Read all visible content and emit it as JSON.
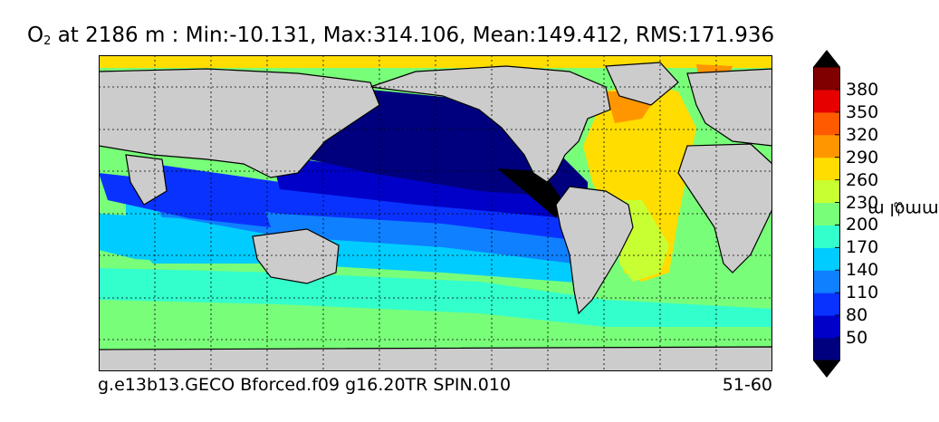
{
  "chart_data": {
    "type": "heatmap",
    "title": {
      "variable": "O",
      "variable_subscript": "2",
      "rest": " at 2186 m : Min:-10.131, Max:314.106, Mean:149.412, RMS:171.936"
    },
    "depth_m": 2186,
    "stats": {
      "min": -10.131,
      "max": 314.106,
      "mean": 149.412,
      "rms": 171.936
    },
    "colorbar": {
      "label": "mmol m",
      "label_exponent": "−3",
      "ticks": [
        50,
        80,
        110,
        140,
        170,
        200,
        230,
        260,
        290,
        320,
        350,
        380
      ],
      "levels": [
        20,
        50,
        80,
        110,
        140,
        170,
        200,
        230,
        260,
        290,
        320,
        350,
        380,
        410
      ],
      "colors": [
        "#00007f",
        "#0000c8",
        "#0a32ff",
        "#0f80ff",
        "#00ccff",
        "#33ffcc",
        "#79fe79",
        "#c8ff33",
        "#ffdd00",
        "#ff9600",
        "#ff5a00",
        "#e60000",
        "#800000"
      ],
      "extend_low_color": "#000000",
      "extend_high_color": "#000000"
    },
    "colors": {
      "land": "#cccccc",
      "missing": "#ffffff",
      "grid": "#000000"
    },
    "grid": true,
    "footer": {
      "case": "g.e13b13.GECO Bforced.f09 g16.20TR SPIN.010",
      "years": "51-60"
    }
  }
}
